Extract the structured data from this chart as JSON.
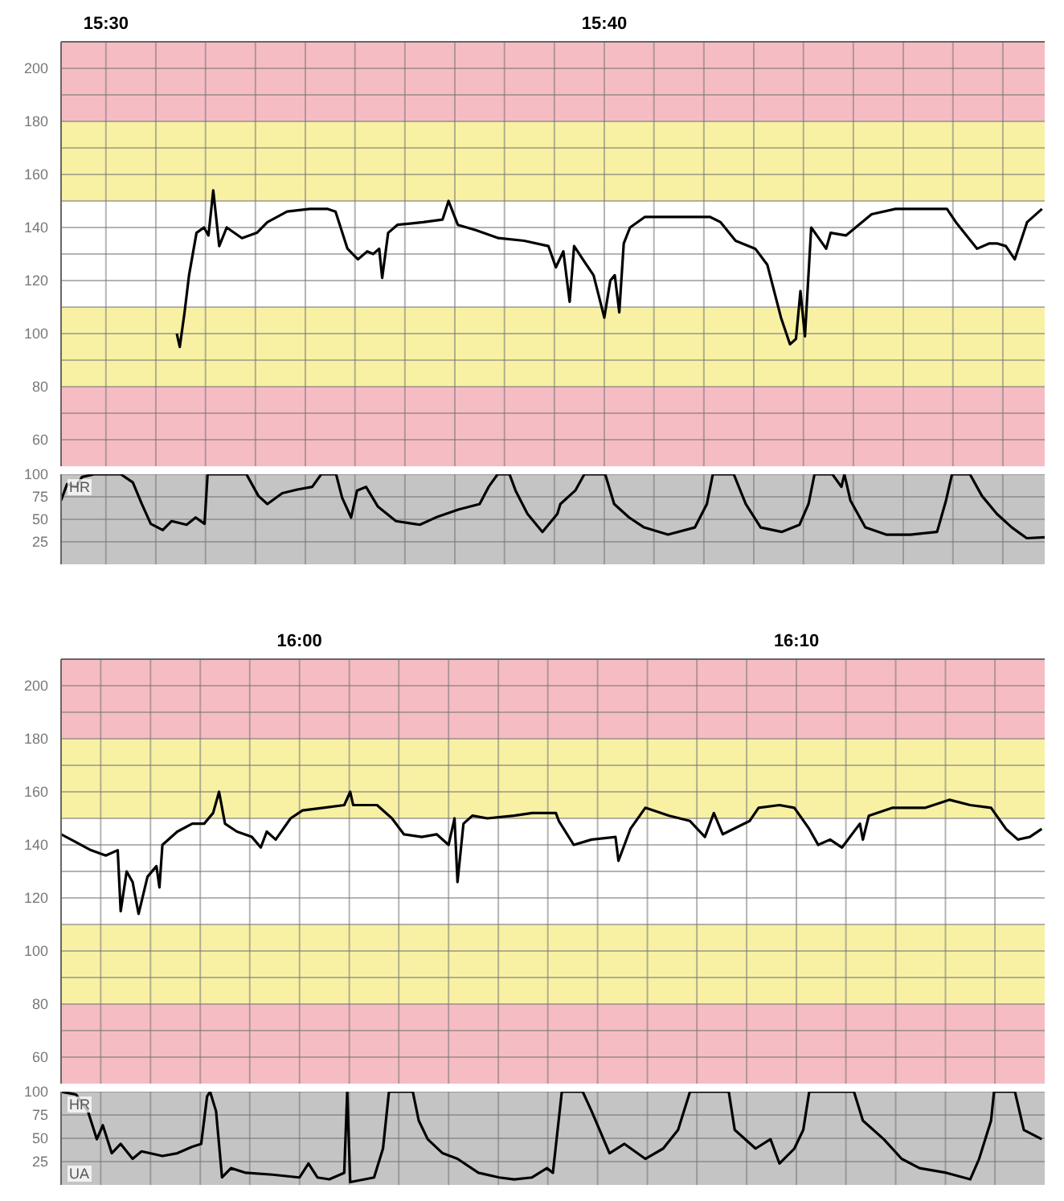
{
  "chart_data": [
    {
      "type": "line",
      "xlim": [
        15.485,
        15.814
      ],
      "xticks": [
        {
          "value": 15.5,
          "label": "15:30"
        },
        {
          "value": 15.5167,
          "label": null
        },
        {
          "value": 15.5333,
          "label": null
        },
        {
          "value": 15.55,
          "label": null
        },
        {
          "value": 15.5667,
          "label": null
        },
        {
          "value": 15.5833,
          "label": null
        },
        {
          "value": 15.6,
          "label": null
        },
        {
          "value": 15.6167,
          "label": null
        },
        {
          "value": 15.6333,
          "label": null
        },
        {
          "value": 15.65,
          "label": null
        },
        {
          "value": 15.6667,
          "label": "15:40"
        },
        {
          "value": 15.6833,
          "label": null
        },
        {
          "value": 15.7,
          "label": null
        },
        {
          "value": 15.7167,
          "label": null
        },
        {
          "value": 15.7333,
          "label": null
        },
        {
          "value": 15.75,
          "label": null
        },
        {
          "value": 15.7667,
          "label": null
        },
        {
          "value": 15.7833,
          "label": null
        },
        {
          "value": 15.8,
          "label": null
        }
      ],
      "ylim": [
        50,
        210
      ],
      "yticks": [
        60,
        {
          "value": 70,
          "label": null
        },
        80,
        {
          "value": 90,
          "label": null
        },
        100,
        {
          "value": 110,
          "label": null
        },
        120,
        {
          "value": 130,
          "label": null
        },
        140,
        {
          "value": 150,
          "label": null
        },
        160,
        {
          "value": 170,
          "label": null
        },
        180,
        {
          "value": 190,
          "label": null
        },
        200
      ],
      "grid": true,
      "bands": [
        {
          "axis": "y",
          "from": 180,
          "to": 210,
          "color": "#f6bcc4"
        },
        {
          "axis": "y",
          "from": 150,
          "to": 180,
          "color": "#f8f1a4"
        },
        {
          "axis": "y",
          "from": 80,
          "to": 110,
          "color": "#f8f1a4"
        },
        {
          "axis": "y",
          "from": 50,
          "to": 80,
          "color": "#f6bcc4"
        }
      ],
      "series": [
        {
          "color": "#000000",
          "x": [
            15.5237,
            15.5247,
            15.5263,
            15.5278,
            15.5303,
            15.5328,
            15.5343,
            15.5359,
            15.5379,
            15.5404,
            15.5455,
            15.5505,
            15.554,
            15.5606,
            15.5682,
            15.5742,
            15.5768,
            15.5808,
            15.5843,
            15.5874,
            15.5894,
            15.5914,
            15.5924,
            15.5944,
            15.5975,
            15.6061,
            15.6126,
            15.6146,
            15.6177,
            15.6237,
            15.6313,
            15.6399,
            15.648,
            15.6505,
            15.653,
            15.6551,
            15.6566,
            15.6601,
            15.6631,
            15.6667,
            15.6687,
            15.6702,
            15.6717,
            15.6732,
            15.6753,
            15.6803,
            15.6919,
            15.702,
            15.7056,
            15.7106,
            15.7172,
            15.7212,
            15.7258,
            15.7288,
            15.7308,
            15.7323,
            15.7338,
            15.7359,
            15.7384,
            15.7409,
            15.7424,
            15.7475,
            15.7561,
            15.7641,
            15.7727,
            15.7813,
            15.7843,
            15.7914,
            15.7955,
            15.798,
            15.801,
            15.804,
            15.8081,
            15.8131
          ],
          "values": [
            100,
            95,
            108,
            122,
            138,
            140,
            137,
            154,
            133,
            140,
            136,
            138,
            142,
            146,
            147,
            147,
            146,
            132,
            128,
            131,
            130,
            132,
            121,
            138,
            141,
            142,
            143,
            150,
            141,
            139,
            136,
            135,
            133,
            125,
            131,
            112,
            133,
            127,
            122,
            106,
            120,
            122,
            108,
            134,
            140,
            144,
            144,
            144,
            142,
            135,
            132,
            126,
            106,
            96,
            98,
            116,
            99,
            140,
            136,
            132,
            138,
            137,
            145,
            147,
            147,
            147,
            142,
            132,
            134,
            134,
            133,
            128,
            142,
            147
          ]
        }
      ]
    },
    {
      "type": "line",
      "xlim": [
        15.485,
        15.814
      ],
      "xticks": [
        {
          "value": 15.5,
          "label": null
        },
        {
          "value": 15.5167,
          "label": null
        },
        {
          "value": 15.5333,
          "label": null
        },
        {
          "value": 15.55,
          "label": null
        },
        {
          "value": 15.5667,
          "label": null
        },
        {
          "value": 15.5833,
          "label": null
        },
        {
          "value": 15.6,
          "label": null
        },
        {
          "value": 15.6167,
          "label": null
        },
        {
          "value": 15.6333,
          "label": null
        },
        {
          "value": 15.65,
          "label": null
        },
        {
          "value": 15.6667,
          "label": null
        },
        {
          "value": 15.6833,
          "label": null
        },
        {
          "value": 15.7,
          "label": null
        },
        {
          "value": 15.7167,
          "label": null
        },
        {
          "value": 15.7333,
          "label": null
        },
        {
          "value": 15.75,
          "label": null
        },
        {
          "value": 15.7667,
          "label": null
        },
        {
          "value": 15.7833,
          "label": null
        },
        {
          "value": 15.8,
          "label": null
        }
      ],
      "ylim": [
        0,
        100
      ],
      "yticks": [
        25,
        50,
        75,
        100
      ],
      "grid": true,
      "tick_labels": "y",
      "annotations": [
        "HR"
      ],
      "bands": [
        {
          "axis": "y",
          "from": 0,
          "to": 100,
          "color": "#c4c4c4"
        }
      ],
      "series": [
        {
          "color": "#000000",
          "x": [
            15.485,
            15.487,
            15.49,
            15.492,
            15.496,
            15.505,
            15.509,
            15.512,
            15.515,
            15.519,
            15.522,
            15.527,
            15.53,
            15.533,
            15.534,
            15.547,
            15.551,
            15.554,
            15.559,
            15.564,
            15.569,
            15.572,
            15.577,
            15.579,
            15.582,
            15.584,
            15.587,
            15.591,
            15.597,
            15.605,
            15.611,
            15.618,
            15.625,
            15.628,
            15.631,
            15.635,
            15.637,
            15.641,
            15.646,
            15.651,
            15.652,
            15.657,
            15.66,
            15.667,
            15.67,
            15.675,
            15.68,
            15.688,
            15.697,
            15.701,
            15.703,
            15.71,
            15.714,
            15.719,
            15.726,
            15.732,
            15.735,
            15.737,
            15.743,
            15.746,
            15.747,
            15.749,
            15.754,
            15.761,
            15.769,
            15.778,
            15.781,
            15.783,
            15.789,
            15.793,
            15.798,
            15.803,
            15.808,
            15.814
          ],
          "values": [
            71,
            89,
            86,
            97,
            100,
            100,
            91,
            67,
            45,
            38,
            48,
            44,
            52,
            45,
            100,
            100,
            76,
            67,
            79,
            83,
            86,
            100,
            100,
            74,
            52,
            82,
            86,
            64,
            48,
            44,
            53,
            61,
            67,
            86,
            100,
            100,
            82,
            56,
            36,
            56,
            67,
            82,
            100,
            100,
            67,
            52,
            41,
            33,
            41,
            67,
            100,
            100,
            67,
            41,
            36,
            44,
            67,
            100,
            100,
            86,
            100,
            71,
            41,
            33,
            33,
            36,
            71,
            100,
            100,
            76,
            56,
            41,
            29,
            30
          ]
        }
      ]
    },
    {
      "type": "line",
      "xlim": [
        15.92,
        16.25
      ],
      "xticks": [
        {
          "value": 15.9333,
          "label": null
        },
        {
          "value": 15.95,
          "label": null
        },
        {
          "value": 15.9667,
          "label": null
        },
        {
          "value": 15.9833,
          "label": null
        },
        {
          "value": 16,
          "label": "16:00"
        },
        {
          "value": 16.0167,
          "label": null
        },
        {
          "value": 16.0333,
          "label": null
        },
        {
          "value": 16.05,
          "label": null
        },
        {
          "value": 16.0667,
          "label": null
        },
        {
          "value": 16.0833,
          "label": null
        },
        {
          "value": 16.1,
          "label": null
        },
        {
          "value": 16.1167,
          "label": null
        },
        {
          "value": 16.1333,
          "label": null
        },
        {
          "value": 16.15,
          "label": null
        },
        {
          "value": 16.1667,
          "label": "16:10"
        },
        {
          "value": 16.1833,
          "label": null
        },
        {
          "value": 16.2,
          "label": null
        },
        {
          "value": 16.2167,
          "label": null
        },
        {
          "value": 16.2333,
          "label": null
        }
      ],
      "ylim": [
        50,
        210
      ],
      "yticks": [
        60,
        {
          "value": 70,
          "label": null
        },
        80,
        {
          "value": 90,
          "label": null
        },
        100,
        {
          "value": 110,
          "label": null
        },
        120,
        {
          "value": 130,
          "label": null
        },
        140,
        {
          "value": 150,
          "label": null
        },
        160,
        {
          "value": 170,
          "label": null
        },
        180,
        {
          "value": 190,
          "label": null
        },
        200
      ],
      "grid": true,
      "bands": [
        {
          "axis": "y",
          "from": 180,
          "to": 210,
          "color": "#f6bcc4"
        },
        {
          "axis": "y",
          "from": 150,
          "to": 180,
          "color": "#f8f1a4"
        },
        {
          "axis": "y",
          "from": 80,
          "to": 110,
          "color": "#f8f1a4"
        },
        {
          "axis": "y",
          "from": 50,
          "to": 80,
          "color": "#f6bcc4"
        }
      ],
      "series": [
        {
          "color": "#000000",
          "x": [
            15.92,
            15.925,
            15.93,
            15.935,
            15.939,
            15.94,
            15.942,
            15.944,
            15.946,
            15.949,
            15.952,
            15.953,
            15.954,
            15.959,
            15.964,
            15.968,
            15.971,
            15.973,
            15.975,
            15.979,
            15.984,
            15.987,
            15.989,
            15.992,
            15.997,
            16.001,
            16.008,
            16.015,
            16.017,
            16.018,
            16.026,
            16.031,
            16.035,
            16.041,
            16.046,
            16.05,
            16.052,
            16.053,
            16.055,
            16.058,
            16.063,
            16.072,
            16.078,
            16.086,
            16.087,
            16.092,
            16.098,
            16.106,
            16.107,
            16.111,
            16.116,
            16.124,
            16.131,
            16.136,
            16.139,
            16.142,
            16.151,
            16.154,
            16.161,
            16.166,
            16.171,
            16.174,
            16.178,
            16.182,
            16.188,
            16.189,
            16.191,
            16.199,
            16.21,
            16.218,
            16.225,
            16.232,
            16.237,
            16.241,
            16.245,
            16.249
          ],
          "values": [
            144,
            141,
            138,
            136,
            138,
            115,
            130,
            126,
            114,
            128,
            132,
            124,
            140,
            145,
            148,
            148,
            152,
            160,
            148,
            145,
            143,
            139,
            145,
            142,
            150,
            153,
            154,
            155,
            160,
            155,
            155,
            150,
            144,
            143,
            144,
            140,
            150,
            126,
            148,
            151,
            150,
            151,
            152,
            152,
            149,
            140,
            142,
            143,
            134,
            146,
            154,
            151,
            149,
            143,
            152,
            144,
            149,
            154,
            155,
            154,
            146,
            140,
            142,
            139,
            148,
            142,
            151,
            154,
            154,
            157,
            155,
            154,
            146,
            142,
            143,
            146
          ]
        }
      ]
    },
    {
      "type": "line",
      "xlim": [
        15.92,
        16.25
      ],
      "xticks": [
        {
          "value": 15.9333,
          "label": null
        },
        {
          "value": 15.95,
          "label": null
        },
        {
          "value": 15.9667,
          "label": null
        },
        {
          "value": 15.9833,
          "label": null
        },
        {
          "value": 16,
          "label": null
        },
        {
          "value": 16.0167,
          "label": null
        },
        {
          "value": 16.0333,
          "label": null
        },
        {
          "value": 16.05,
          "label": null
        },
        {
          "value": 16.0667,
          "label": null
        },
        {
          "value": 16.0833,
          "label": null
        },
        {
          "value": 16.1,
          "label": null
        },
        {
          "value": 16.1167,
          "label": null
        },
        {
          "value": 16.1333,
          "label": null
        },
        {
          "value": 16.15,
          "label": null
        },
        {
          "value": 16.1667,
          "label": null
        },
        {
          "value": 16.1833,
          "label": null
        },
        {
          "value": 16.2,
          "label": null
        },
        {
          "value": 16.2167,
          "label": null
        },
        {
          "value": 16.2333,
          "label": null
        }
      ],
      "ylim": [
        0,
        100
      ],
      "yticks": [
        25,
        50,
        75,
        100
      ],
      "grid": true,
      "tick_labels": "y",
      "annotations": [
        "HR",
        "UA"
      ],
      "bands": [
        {
          "axis": "y",
          "from": 0,
          "to": 100,
          "color": "#c4c4c4"
        }
      ],
      "series": [
        {
          "color": "#000000",
          "x": [
            15.92,
            15.925,
            15.929,
            15.932,
            15.934,
            15.937,
            15.94,
            15.944,
            15.947,
            15.954,
            15.959,
            15.964,
            15.967,
            15.969,
            15.97,
            15.972,
            15.974,
            15.977,
            15.982,
            15.991,
            16.0,
            16.003,
            16.006,
            16.01,
            16.015,
            16.016,
            16.017,
            16.025,
            16.028,
            16.03,
            16.038,
            16.04,
            16.043,
            16.048,
            16.053,
            16.06,
            16.067,
            16.072,
            16.078,
            16.083,
            16.085,
            16.088,
            16.095,
            16.098,
            16.104,
            16.109,
            16.116,
            16.122,
            16.127,
            16.131,
            16.144,
            16.146,
            16.153,
            16.158,
            16.161,
            16.166,
            16.169,
            16.171,
            16.186,
            16.189,
            16.196,
            16.202,
            16.208,
            16.217,
            16.225,
            16.228,
            16.232,
            16.233,
            16.24,
            16.243,
            16.249
          ],
          "values": [
            100,
            97,
            79,
            49,
            64,
            34,
            44,
            28,
            36,
            31,
            34,
            41,
            44,
            95,
            100,
            79,
            8,
            18,
            13,
            11,
            8,
            23,
            8,
            6,
            13,
            100,
            3,
            8,
            39,
            100,
            100,
            69,
            49,
            34,
            28,
            13,
            8,
            6,
            8,
            18,
            13,
            100,
            100,
            79,
            34,
            44,
            28,
            39,
            59,
            100,
            100,
            59,
            39,
            49,
            23,
            39,
            59,
            100,
            100,
            69,
            49,
            28,
            18,
            13,
            6,
            28,
            69,
            100,
            100,
            59,
            49
          ]
        }
      ]
    }
  ]
}
